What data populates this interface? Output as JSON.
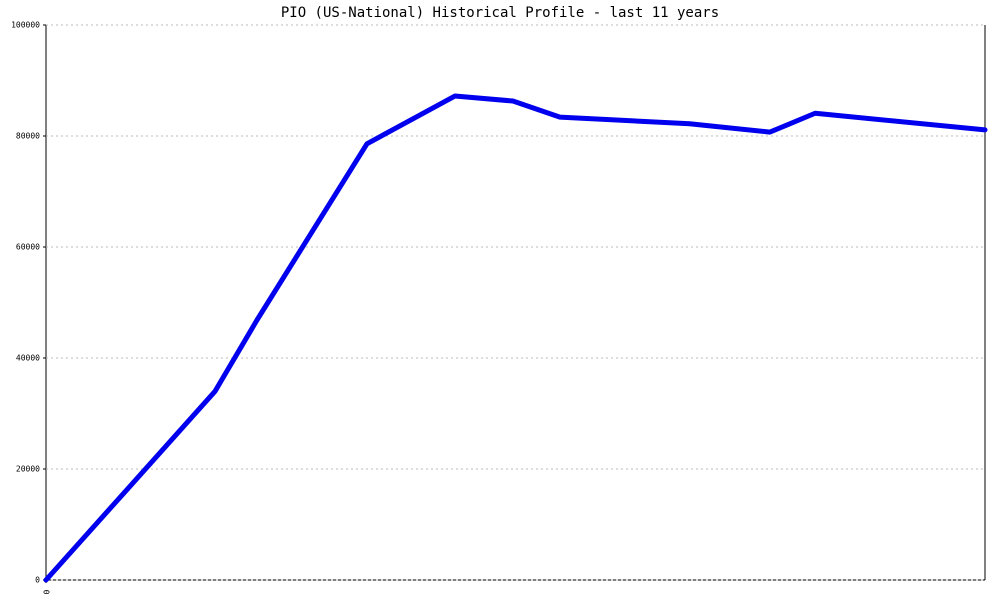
{
  "chart_data": {
    "type": "line",
    "title": "PIO (US-National) Historical Profile - last 11 years",
    "x": [
      0,
      1.98,
      2.47,
      3.76,
      4.79,
      5.47,
      6.02,
      7.54,
      8.48,
      9.01,
      11
    ],
    "series": [
      {
        "color": "#0000ee",
        "values": [
          0,
          34000,
          46800,
          78600,
          87200,
          86300,
          83400,
          82200,
          80700,
          84100,
          81100
        ]
      }
    ],
    "xlim": [
      0,
      11
    ],
    "xticks": [
      0
    ],
    "ylim": [
      0,
      100000
    ],
    "yticks": [
      0,
      20000,
      40000,
      60000,
      80000,
      100000
    ],
    "grid": true
  }
}
